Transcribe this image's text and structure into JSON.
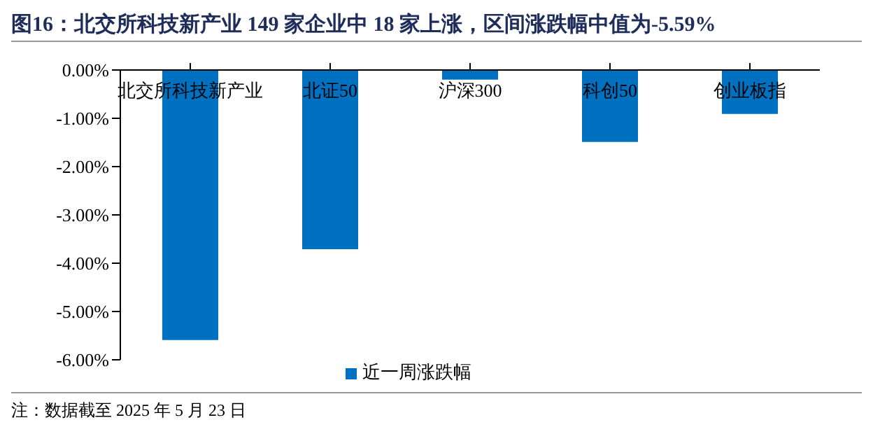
{
  "chart_data": {
    "type": "bar",
    "title": "图16：北交所科技新产业 149 家企业中 18 家上涨，区间涨跌幅中值为-5.59%",
    "categories": [
      "北交所科技新产业",
      "北证50",
      "沪深300",
      "科创50",
      "创业板指"
    ],
    "series": [
      {
        "name": "近一周涨跌幅",
        "color": "#0070c0",
        "values": [
          -5.59,
          -3.71,
          -0.2,
          -1.49,
          -0.91
        ]
      }
    ],
    "ylim": [
      -6,
      0
    ],
    "yticks": [
      {
        "value": 0,
        "label": "0.00%"
      },
      {
        "value": -1,
        "label": "-1.00%"
      },
      {
        "value": -2,
        "label": "-2.00%"
      },
      {
        "value": -3,
        "label": "-3.00%"
      },
      {
        "value": -4,
        "label": "-4.00%"
      },
      {
        "value": -5,
        "label": "-5.00%"
      },
      {
        "value": -6,
        "label": "-6.00%"
      }
    ],
    "grid": false,
    "legend": "bottom",
    "annotations": [
      "注：数据截至 2025 年 5 月 23 日"
    ]
  }
}
